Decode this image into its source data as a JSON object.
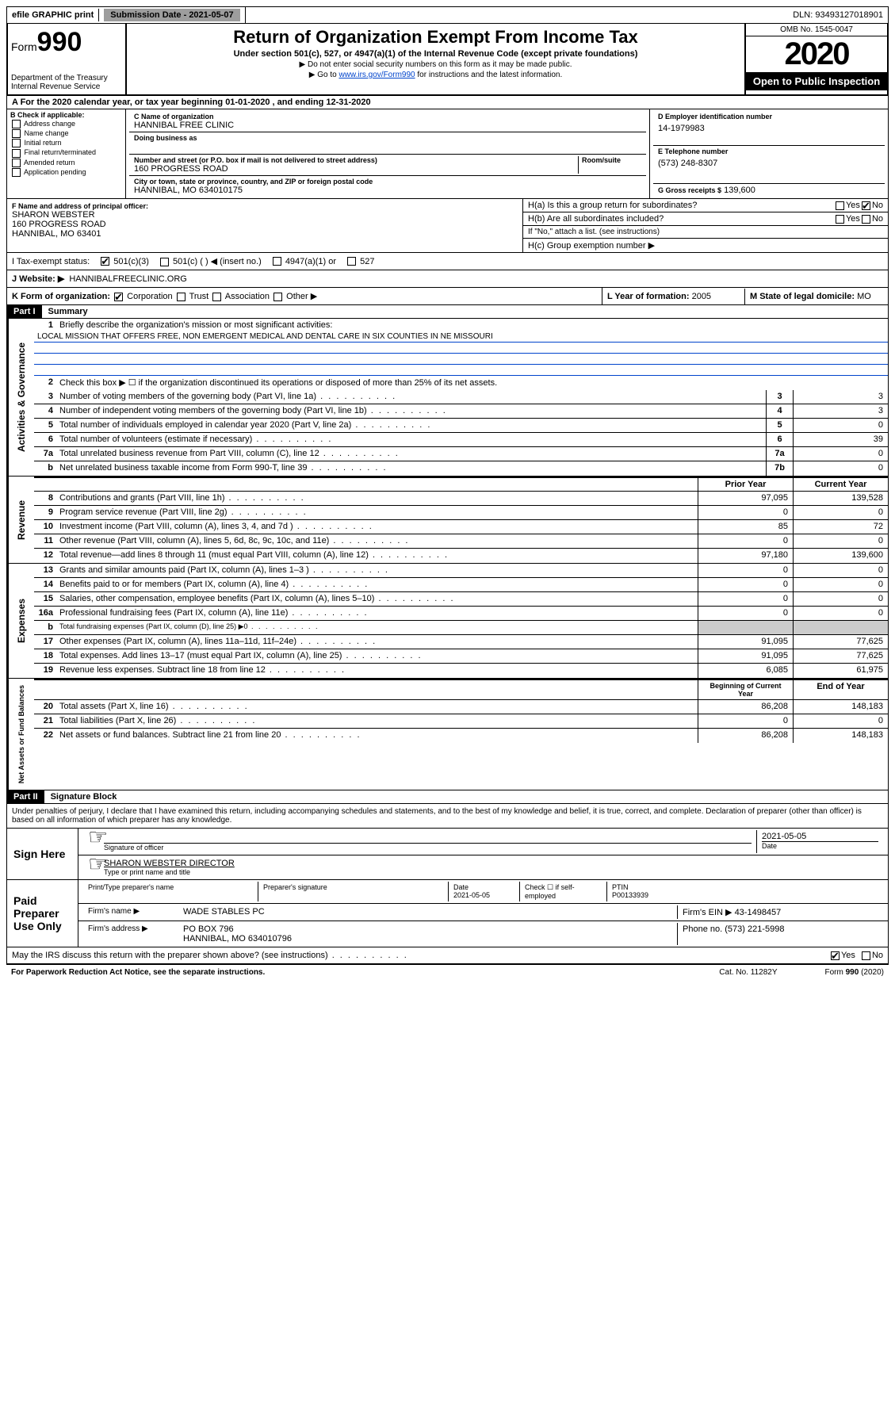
{
  "topbar": {
    "efile": "efile GRAPHIC print",
    "submission_label": "Submission Date - 2021-05-07",
    "dln": "DLN: 93493127018901"
  },
  "header": {
    "form_prefix": "Form",
    "form_number": "990",
    "dept": "Department of the Treasury\nInternal Revenue Service",
    "title": "Return of Organization Exempt From Income Tax",
    "sub": "Under section 501(c), 527, or 4947(a)(1) of the Internal Revenue Code (except private foundations)",
    "note1": "▶ Do not enter social security numbers on this form as it may be made public.",
    "note2_pre": "▶ Go to ",
    "note2_link": "www.irs.gov/Form990",
    "note2_post": " for instructions and the latest information.",
    "omb": "OMB No. 1545-0047",
    "year": "2020",
    "open": "Open to Public Inspection"
  },
  "period": "A For the 2020 calendar year, or tax year beginning 01-01-2020    , and ending 12-31-2020",
  "boxB": {
    "label": "B Check if applicable:",
    "items": [
      "Address change",
      "Name change",
      "Initial return",
      "Final return/terminated",
      "Amended return",
      "Application pending"
    ]
  },
  "boxC": {
    "name_label": "C Name of organization",
    "name": "HANNIBAL FREE CLINIC",
    "dba_label": "Doing business as",
    "addr_label": "Number and street (or P.O. box if mail is not delivered to street address)",
    "room_label": "Room/suite",
    "addr": "160 PROGRESS ROAD",
    "city_label": "City or town, state or province, country, and ZIP or foreign postal code",
    "city": "HANNIBAL, MO  634010175"
  },
  "boxD": {
    "label": "D Employer identification number",
    "val": "14-1979983"
  },
  "boxE": {
    "label": "E Telephone number",
    "val": "(573) 248-8307"
  },
  "boxG": {
    "label": "G Gross receipts $",
    "val": "139,600"
  },
  "boxF": {
    "label": "F  Name and address of principal officer:",
    "name": "SHARON WEBSTER",
    "addr1": "160 PROGRESS ROAD",
    "addr2": "HANNIBAL, MO  63401"
  },
  "boxH": {
    "a": "H(a)  Is this a group return for subordinates?",
    "b": "H(b)  Are all subordinates included?",
    "b_note": "If \"No,\" attach a list. (see instructions)",
    "c": "H(c)  Group exemption number ▶"
  },
  "taxI": {
    "label": "I   Tax-exempt status:",
    "opts": [
      "501(c)(3)",
      "501(c) (   ) ◀ (insert no.)",
      "4947(a)(1) or",
      "527"
    ]
  },
  "taxJ": {
    "label": "J   Website: ▶",
    "val": "HANNIBALFREECLINIC.ORG"
  },
  "boxK": {
    "label": "K Form of organization:",
    "opts": [
      "Corporation",
      "Trust",
      "Association",
      "Other ▶"
    ]
  },
  "boxL": {
    "label": "L Year of formation:",
    "val": "2005"
  },
  "boxM": {
    "label": "M State of legal domicile:",
    "val": "MO"
  },
  "part1": {
    "hdr": "Part I",
    "title": "Summary"
  },
  "gov": {
    "side": "Activities & Governance",
    "l1": "Briefly describe the organization's mission or most significant activities:",
    "mission": "LOCAL MISSION THAT OFFERS FREE, NON EMERGENT MEDICAL AND DENTAL CARE IN SIX COUNTIES IN NE MISSOURI",
    "l2": "Check this box ▶ ☐  if the organization discontinued its operations or disposed of more than 25% of its net assets.",
    "rows": [
      {
        "n": "3",
        "d": "Number of voting members of the governing body (Part VI, line 1a)",
        "b": "3",
        "v": "3"
      },
      {
        "n": "4",
        "d": "Number of independent voting members of the governing body (Part VI, line 1b)",
        "b": "4",
        "v": "3"
      },
      {
        "n": "5",
        "d": "Total number of individuals employed in calendar year 2020 (Part V, line 2a)",
        "b": "5",
        "v": "0"
      },
      {
        "n": "6",
        "d": "Total number of volunteers (estimate if necessary)",
        "b": "6",
        "v": "39"
      },
      {
        "n": "7a",
        "d": "Total unrelated business revenue from Part VIII, column (C), line 12",
        "b": "7a",
        "v": "0"
      },
      {
        "n": "b",
        "d": "Net unrelated business taxable income from Form 990-T, line 39",
        "b": "7b",
        "v": "0"
      }
    ]
  },
  "rev": {
    "side": "Revenue",
    "hdr_prior": "Prior Year",
    "hdr_curr": "Current Year",
    "rows": [
      {
        "n": "8",
        "d": "Contributions and grants (Part VIII, line 1h)",
        "p": "97,095",
        "c": "139,528"
      },
      {
        "n": "9",
        "d": "Program service revenue (Part VIII, line 2g)",
        "p": "0",
        "c": "0"
      },
      {
        "n": "10",
        "d": "Investment income (Part VIII, column (A), lines 3, 4, and 7d )",
        "p": "85",
        "c": "72"
      },
      {
        "n": "11",
        "d": "Other revenue (Part VIII, column (A), lines 5, 6d, 8c, 9c, 10c, and 11e)",
        "p": "0",
        "c": "0"
      },
      {
        "n": "12",
        "d": "Total revenue—add lines 8 through 11 (must equal Part VIII, column (A), line 12)",
        "p": "97,180",
        "c": "139,600"
      }
    ]
  },
  "exp": {
    "side": "Expenses",
    "rows": [
      {
        "n": "13",
        "d": "Grants and similar amounts paid (Part IX, column (A), lines 1–3 )",
        "p": "0",
        "c": "0"
      },
      {
        "n": "14",
        "d": "Benefits paid to or for members (Part IX, column (A), line 4)",
        "p": "0",
        "c": "0"
      },
      {
        "n": "15",
        "d": "Salaries, other compensation, employee benefits (Part IX, column (A), lines 5–10)",
        "p": "0",
        "c": "0"
      },
      {
        "n": "16a",
        "d": "Professional fundraising fees (Part IX, column (A), line 11e)",
        "p": "0",
        "c": "0"
      },
      {
        "n": "b",
        "d": "Total fundraising expenses (Part IX, column (D), line 25) ▶0",
        "p": "",
        "c": "",
        "shaded": true
      },
      {
        "n": "17",
        "d": "Other expenses (Part IX, column (A), lines 11a–11d, 11f–24e)",
        "p": "91,095",
        "c": "77,625"
      },
      {
        "n": "18",
        "d": "Total expenses. Add lines 13–17 (must equal Part IX, column (A), line 25)",
        "p": "91,095",
        "c": "77,625"
      },
      {
        "n": "19",
        "d": "Revenue less expenses. Subtract line 18 from line 12",
        "p": "6,085",
        "c": "61,975"
      }
    ]
  },
  "net": {
    "side": "Net Assets or Fund Balances",
    "hdr_beg": "Beginning of Current Year",
    "hdr_end": "End of Year",
    "rows": [
      {
        "n": "20",
        "d": "Total assets (Part X, line 16)",
        "p": "86,208",
        "c": "148,183"
      },
      {
        "n": "21",
        "d": "Total liabilities (Part X, line 26)",
        "p": "0",
        "c": "0"
      },
      {
        "n": "22",
        "d": "Net assets or fund balances. Subtract line 21 from line 20",
        "p": "86,208",
        "c": "148,183"
      }
    ]
  },
  "part2": {
    "hdr": "Part II",
    "title": "Signature Block"
  },
  "penalty": "Under penalties of perjury, I declare that I have examined this return, including accompanying schedules and statements, and to the best of my knowledge and belief, it is true, correct, and complete. Declaration of preparer (other than officer) is based on all information of which preparer has any knowledge.",
  "sign": {
    "here": "Sign Here",
    "sig_officer": "Signature of officer",
    "date": "2021-05-05",
    "date_label": "Date",
    "name": "SHARON WEBSTER  DIRECTOR",
    "name_label": "Type or print name and title"
  },
  "paid": {
    "left": "Paid Preparer Use Only",
    "h1": "Print/Type preparer's name",
    "h2": "Preparer's signature",
    "h3": "Date",
    "h3v": "2021-05-05",
    "h4": "Check ☐ if self-employed",
    "h5": "PTIN",
    "h5v": "P00133939",
    "firm_name_l": "Firm's name    ▶",
    "firm_name": "WADE STABLES PC",
    "firm_ein_l": "Firm's EIN ▶",
    "firm_ein": "43-1498457",
    "firm_addr_l": "Firm's address ▶",
    "firm_addr": "PO BOX 796",
    "firm_city": "HANNIBAL, MO  634010796",
    "phone_l": "Phone no.",
    "phone": "(573) 221-5998"
  },
  "discuss": "May the IRS discuss this return with the preparer shown above? (see instructions)",
  "footer": {
    "l": "For Paperwork Reduction Act Notice, see the separate instructions.",
    "m": "Cat. No. 11282Y",
    "r": "Form 990 (2020)"
  }
}
